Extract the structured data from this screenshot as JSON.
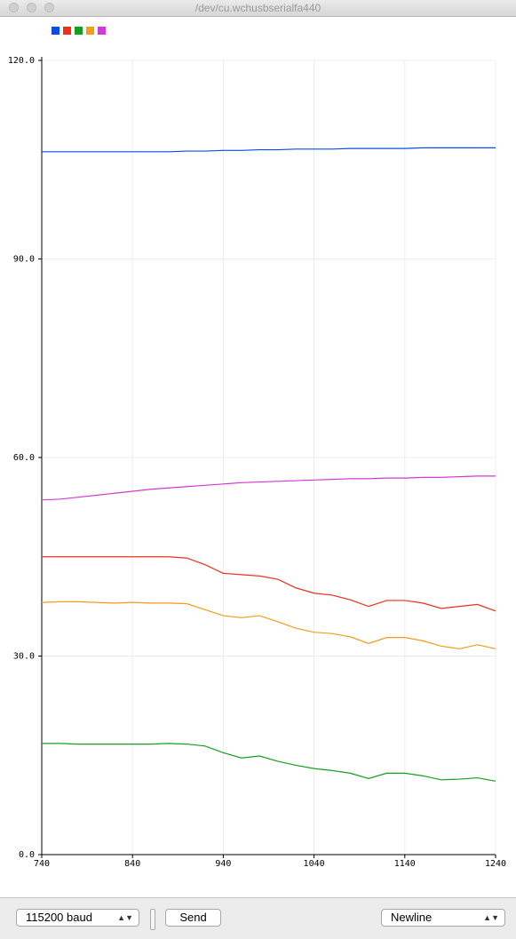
{
  "window": {
    "title": "/dev/cu.wchusbserialfa440"
  },
  "controls": {
    "baud": "115200 baud",
    "send": "Send",
    "line_ending": "Newline"
  },
  "chart_data": {
    "type": "line",
    "x": [
      740,
      760,
      780,
      800,
      820,
      840,
      860,
      880,
      900,
      920,
      940,
      960,
      980,
      1000,
      1020,
      1040,
      1060,
      1080,
      1100,
      1120,
      1140,
      1160,
      1180,
      1200,
      1220,
      1240
    ],
    "series": [
      {
        "color": "#0a4de8",
        "values": [
          106.2,
          106.2,
          106.2,
          106.2,
          106.2,
          106.2,
          106.2,
          106.2,
          106.3,
          106.3,
          106.4,
          106.4,
          106.5,
          106.5,
          106.6,
          106.6,
          106.6,
          106.7,
          106.7,
          106.7,
          106.7,
          106.8,
          106.8,
          106.8,
          106.8,
          106.8
        ]
      },
      {
        "color": "#f0301c",
        "values": [
          45.0,
          45.0,
          45.0,
          45.0,
          45.0,
          45.0,
          45.0,
          45.0,
          44.8,
          43.8,
          42.5,
          42.3,
          42.1,
          41.6,
          40.3,
          39.5,
          39.2,
          38.5,
          37.5,
          38.4,
          38.4,
          38.0,
          37.2,
          37.5,
          37.8,
          36.8
        ]
      },
      {
        "color": "#14a01e",
        "values": [
          16.8,
          16.8,
          16.7,
          16.7,
          16.7,
          16.7,
          16.7,
          16.8,
          16.7,
          16.4,
          15.4,
          14.6,
          14.9,
          14.1,
          13.5,
          13.0,
          12.7,
          12.3,
          11.5,
          12.3,
          12.3,
          11.9,
          11.3,
          11.4,
          11.6,
          11.1
        ]
      },
      {
        "color": "#f59c1a",
        "values": [
          38.1,
          38.2,
          38.2,
          38.1,
          38.0,
          38.1,
          38.0,
          38.0,
          37.9,
          37.0,
          36.1,
          35.8,
          36.1,
          35.2,
          34.2,
          33.6,
          33.4,
          32.9,
          31.9,
          32.8,
          32.8,
          32.3,
          31.5,
          31.1,
          31.7,
          31.1
        ]
      },
      {
        "color": "#d23ad6",
        "values": [
          53.6,
          53.7,
          54.0,
          54.3,
          54.6,
          54.9,
          55.2,
          55.4,
          55.6,
          55.8,
          56.0,
          56.2,
          56.3,
          56.4,
          56.5,
          56.6,
          56.7,
          56.8,
          56.8,
          56.9,
          56.9,
          57.0,
          57.0,
          57.1,
          57.2,
          57.2
        ]
      }
    ],
    "xlim": [
      740,
      1240
    ],
    "xticks": [
      740,
      840,
      940,
      1040,
      1140,
      1240
    ],
    "ylim": [
      0,
      120
    ],
    "yticks": [
      {
        "value": 0,
        "label": "0.0"
      },
      {
        "value": 30,
        "label": "30.0"
      },
      {
        "value": 60,
        "label": "60.0"
      },
      {
        "value": 90,
        "label": "90.0"
      },
      {
        "value": 120,
        "label": "120.0"
      }
    ],
    "grid": true
  }
}
